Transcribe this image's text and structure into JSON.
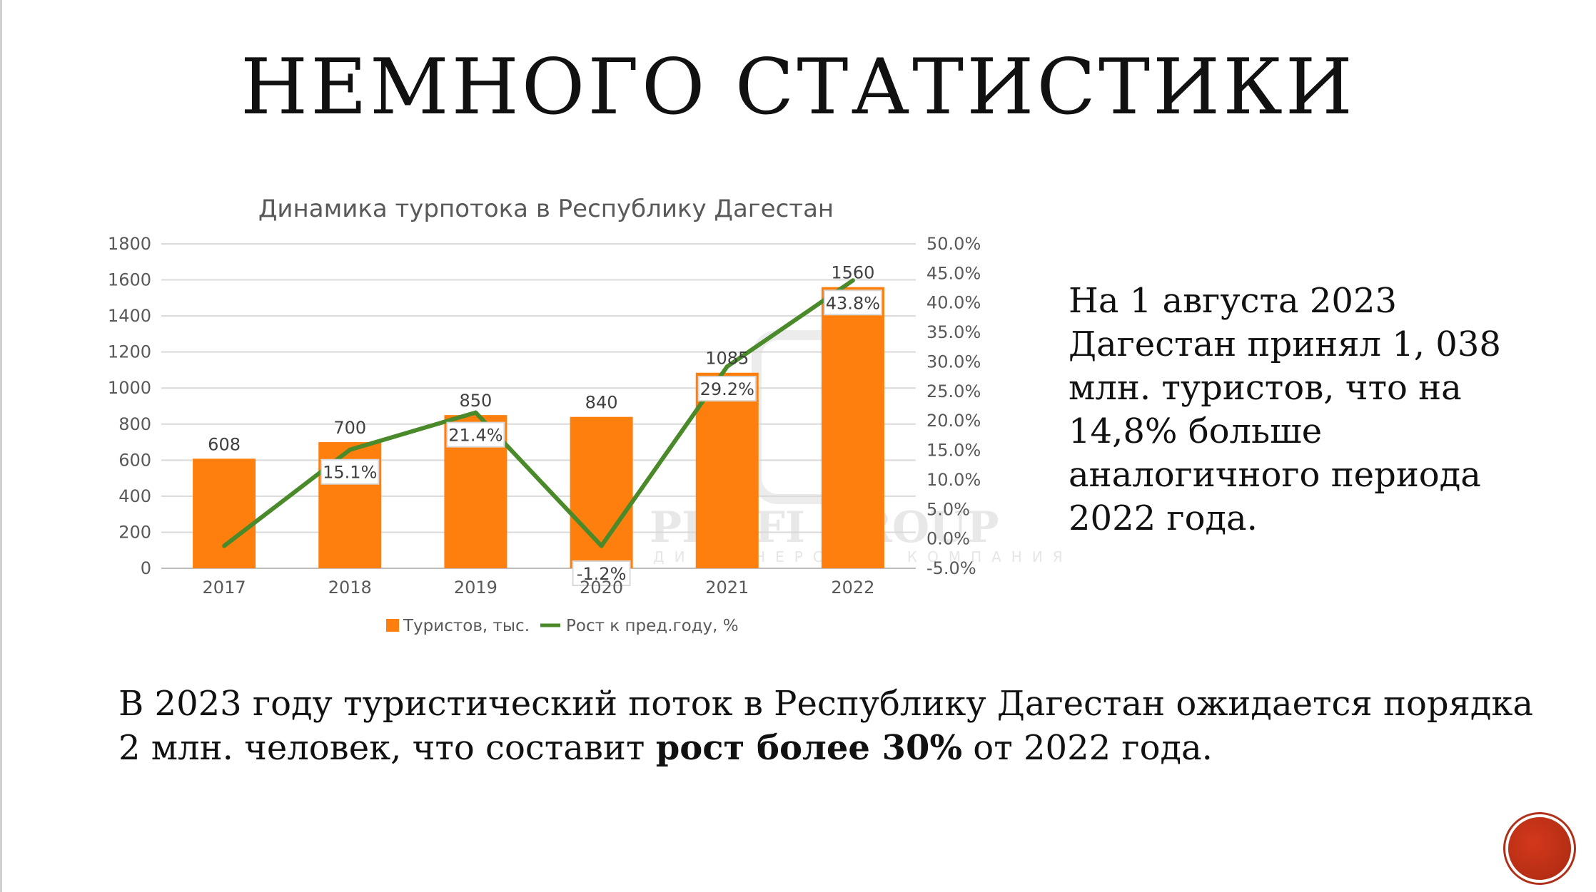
{
  "slide": {
    "title": "НЕМНОГО СТАТИСТИКИ",
    "side_text": "На 1 августа 2023 Дагестан принял 1, 038 млн. туристов, что на 14,8% больше аналогичного периода 2022 года.",
    "bottom_text": {
      "part1": "В 2023 году туристический поток в Республику Дагестан ожидается порядка 2 млн. человек, что составит ",
      "bold": "рост более 30%",
      "part2": " от 2022 года."
    }
  },
  "watermark": {
    "name": "PROFI GROUP",
    "sub": "ДИЗАЙНЕРСКАЯ КОМПАНИЯ"
  },
  "chart_data": {
    "type": "bar",
    "title": "Динамика турпотока в Республику Дагестан",
    "categories": [
      "2017",
      "2018",
      "2019",
      "2020",
      "2021",
      "2022"
    ],
    "series": [
      {
        "name": "Туристов, тыс.",
        "type": "bar",
        "axis": "left",
        "color": "#ff7f0e",
        "values": [
          608,
          700,
          850,
          840,
          1085,
          1560
        ],
        "labels": [
          "608",
          "700",
          "850",
          "840",
          "1085",
          "1560"
        ]
      },
      {
        "name": "Рост к пред.году, %",
        "type": "line",
        "axis": "right",
        "color": "#4a8a2a",
        "values": [
          -1.2,
          15.1,
          21.4,
          -1.2,
          29.2,
          43.8
        ],
        "labels": [
          "",
          "15.1%",
          "21.4%",
          "-1.2%",
          "29.2%",
          "43.8%"
        ]
      }
    ],
    "y_left": {
      "min": 0,
      "max": 1800,
      "ticks": [
        "0",
        "200",
        "400",
        "600",
        "800",
        "1000",
        "1200",
        "1400",
        "1600",
        "1800"
      ]
    },
    "y_right": {
      "min": -5,
      "max": 50,
      "ticks": [
        "-5.0%",
        "0.0%",
        "5.0%",
        "10.0%",
        "15.0%",
        "20.0%",
        "25.0%",
        "30.0%",
        "35.0%",
        "40.0%",
        "45.0%",
        "50.0%"
      ]
    },
    "grid": true,
    "legend": "bottom"
  },
  "nav": {
    "icon": "circle-button-icon"
  }
}
